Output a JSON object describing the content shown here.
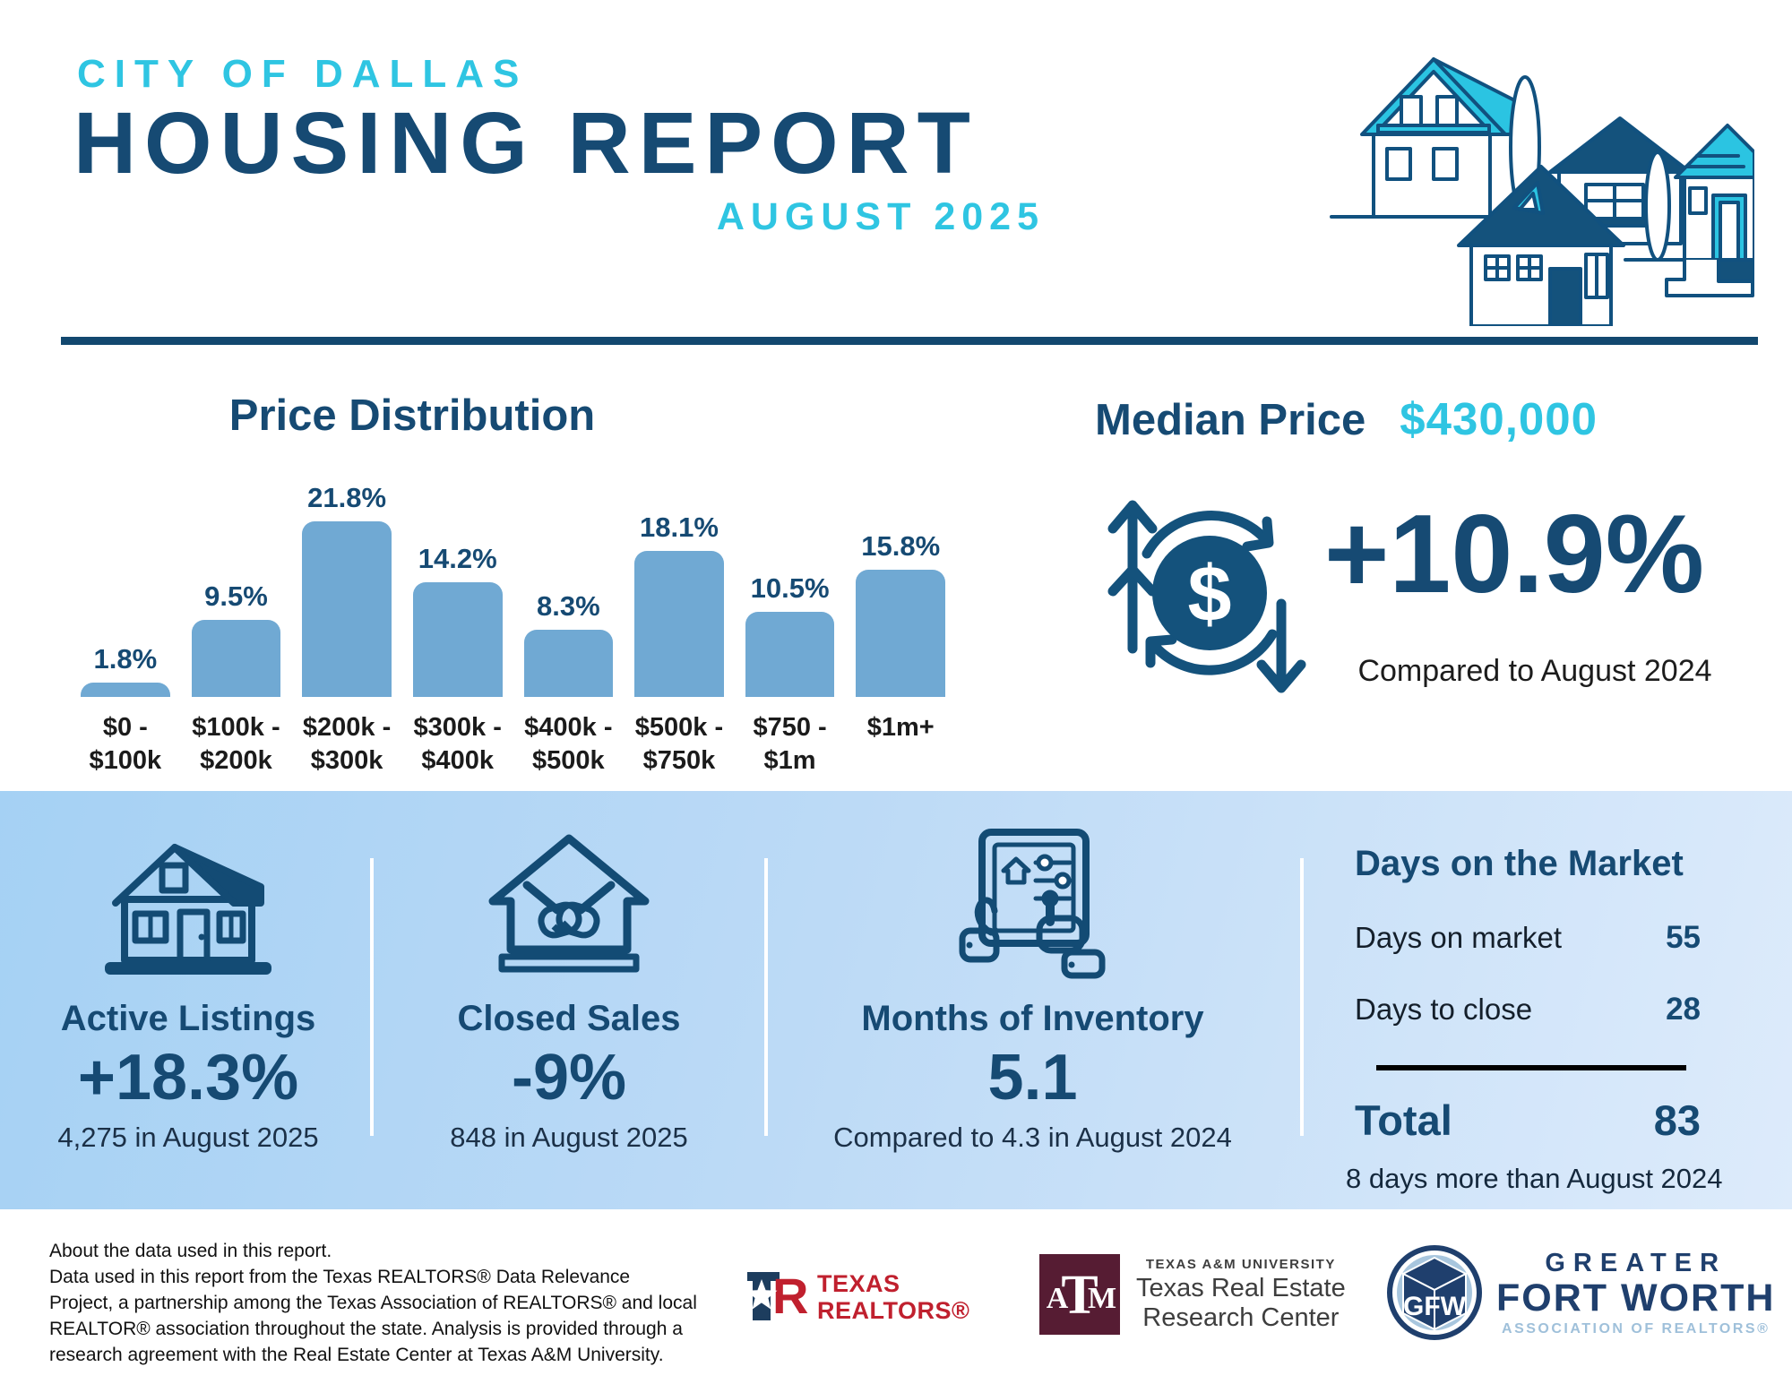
{
  "header": {
    "city": "CITY OF DALLAS",
    "title": "HOUSING REPORT",
    "month": "AUGUST 2025"
  },
  "chart_data": {
    "type": "bar",
    "title": "Price Distribution",
    "categories": [
      [
        "$0 -",
        "$100k"
      ],
      [
        "$100k -",
        "$200k"
      ],
      [
        "$200k -",
        "$300k"
      ],
      [
        "$300k -",
        "$400k"
      ],
      [
        "$400k -",
        "$500k"
      ],
      [
        "$500k -",
        "$750k"
      ],
      [
        "$750 -",
        "$1m"
      ],
      [
        "$1m+"
      ]
    ],
    "values": [
      1.8,
      9.5,
      21.8,
      14.2,
      8.3,
      18.1,
      10.5,
      15.8
    ],
    "value_labels": [
      "1.8%",
      "9.5%",
      "21.8%",
      "14.2%",
      "8.3%",
      "18.1%",
      "10.5%",
      "15.8%"
    ],
    "unit": "%",
    "xlabel": "",
    "ylabel": "",
    "ylim": [
      0,
      22
    ],
    "grid": false,
    "legend": "none",
    "bar_color": "#70a9d3"
  },
  "median": {
    "label": "Median Price",
    "value": "$430,000",
    "change": "+10.9%",
    "comparison": "Compared to August 2024"
  },
  "metrics": [
    {
      "title": "Active Listings",
      "value": "+18.3%",
      "caption": "4,275 in August 2025",
      "icon": "house-icon"
    },
    {
      "title": "Closed Sales",
      "value": "-9%",
      "caption": "848 in August 2025",
      "icon": "handshake-house-icon"
    },
    {
      "title": "Months of Inventory",
      "value": "5.1",
      "caption": "Compared to 4.3 in August 2024",
      "icon": "inventory-tablet-icon"
    }
  ],
  "days_on_market": {
    "title": "Days on the Market",
    "rows": [
      {
        "label": "Days on market",
        "value": "55"
      },
      {
        "label": "Days to close",
        "value": "28"
      }
    ],
    "total_label": "Total",
    "total_value": "83",
    "caption": "8 days more than August 2024"
  },
  "footer": {
    "about_lines": [
      "About the data used in this report.",
      "Data used in this report from the Texas REALTORS® Data Relevance",
      "Project, a partnership among the Texas Association of REALTORS® and local",
      "REALTOR® association throughout the state. Analysis is provided through a",
      "research agreement with the Real Estate Center at Texas A&M University."
    ],
    "texas_realtors": {
      "line1": "TEXAS",
      "line2": "REALTORS®"
    },
    "tamu": {
      "line1": "TEXAS A&M UNIVERSITY",
      "line2": "Texas Real Estate",
      "line3": "Research Center",
      "monogram": "ATM"
    },
    "gfw": {
      "monogram": "GFW",
      "line1": "GREATER",
      "line2": "FORT WORTH",
      "line3": "ASSOCIATION OF REALTORS®"
    }
  },
  "colors": {
    "accent_cyan": "#2fc5e2",
    "navy": "#164a73",
    "bar_blue": "#70a9d3",
    "band_blue_left": "#a5d1f4",
    "band_blue_right": "#ddebfb",
    "realtor_red": "#c0202e",
    "aggie_maroon": "#561c33",
    "gfw_navy": "#1f3f6d",
    "gfw_lightblue": "#9fc0da"
  }
}
